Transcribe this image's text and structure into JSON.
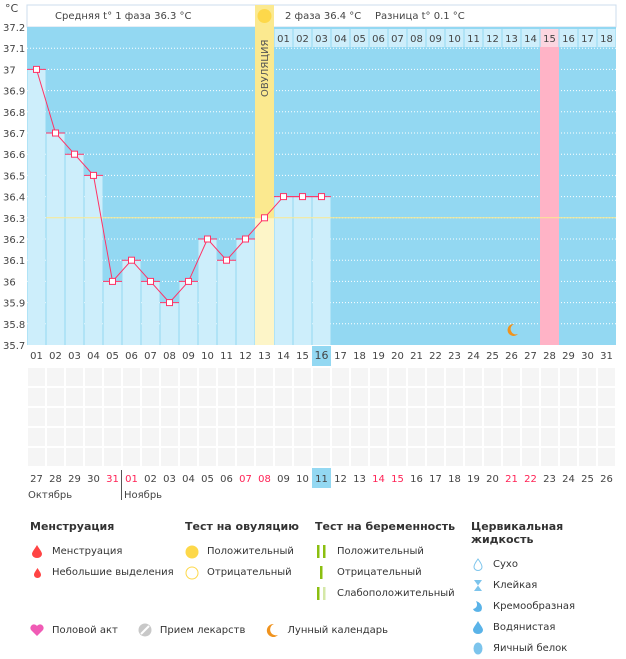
{
  "header": {
    "unit": "°C",
    "phase1": "Средняя t° 1 фаза 36.3 °C",
    "phase2": "2 фаза 36.4 °C",
    "diff": "Разница t° 0.1 °C",
    "ovulation": "ОВУЛЯЦИЯ"
  },
  "chart_data": {
    "type": "line",
    "ylim": [
      35.7,
      37.2
    ],
    "yticks": [
      "37.2",
      "37.1",
      "37",
      "36.9",
      "36.8",
      "36.7",
      "36.6",
      "36.5",
      "36.4",
      "36.3",
      "36.2",
      "36.1",
      "36",
      "35.9",
      "35.8",
      "35.7"
    ],
    "cycle_days": [
      "01",
      "02",
      "03",
      "04",
      "05",
      "06",
      "07",
      "08",
      "09",
      "10",
      "11",
      "12",
      "13",
      "14",
      "15",
      "16",
      "17",
      "18",
      "19",
      "20",
      "21",
      "22",
      "23",
      "24",
      "25",
      "26",
      "27",
      "28",
      "29",
      "30",
      "31"
    ],
    "temperatures": [
      37.0,
      36.7,
      36.6,
      36.5,
      36.0,
      36.1,
      36.0,
      35.9,
      36.0,
      36.2,
      36.1,
      36.2,
      36.3,
      36.4,
      36.4,
      36.4
    ],
    "coverline": 36.3,
    "ovulation_day": 13,
    "today_day": 16,
    "phase2_days": [
      "01",
      "02",
      "03",
      "04",
      "05",
      "06",
      "07",
      "08",
      "09",
      "10",
      "11",
      "12",
      "13",
      "14",
      "15",
      "16",
      "17",
      "18"
    ],
    "highlight_phase2_day": "15",
    "moon_day": 26,
    "dates": [
      "27",
      "28",
      "29",
      "30",
      "31",
      "01",
      "02",
      "03",
      "04",
      "05",
      "06",
      "07",
      "08",
      "09",
      "10",
      "11",
      "12",
      "13",
      "14",
      "15",
      "16",
      "17",
      "18",
      "19",
      "20",
      "21",
      "22",
      "23",
      "24",
      "25",
      "26"
    ],
    "weekend_dates_idx": [
      4,
      5,
      11,
      12,
      18,
      19,
      25,
      26
    ],
    "months": [
      "Октябрь",
      "Ноябрь"
    ]
  },
  "colors": {
    "bg": "#93d8f2",
    "bar": "#cdeefb",
    "line": "#ff3366",
    "ovulation": "#fbe98f",
    "pink": "#ffb3c6",
    "today": "#93d8f2",
    "weekend": "#ff2255"
  },
  "legend": {
    "menstruation": {
      "title": "Менструация",
      "items": [
        "Менструация",
        "Небольшие выделения"
      ]
    },
    "ovulation_test": {
      "title": "Тест на овуляцию",
      "items": [
        "Положительный",
        "Отрицательный"
      ]
    },
    "pregnancy_test": {
      "title": "Тест на беременность",
      "items": [
        "Положительный",
        "Отрицательный",
        "Слабоположительный"
      ]
    },
    "cervical": {
      "title": "Цервикальная жидкость",
      "items": [
        "Сухо",
        "Клейкая",
        "Кремообразная",
        "Водянистая",
        "Яичный белок"
      ]
    },
    "other": [
      "Половой акт",
      "Прием лекарств",
      "Лунный календарь"
    ]
  }
}
